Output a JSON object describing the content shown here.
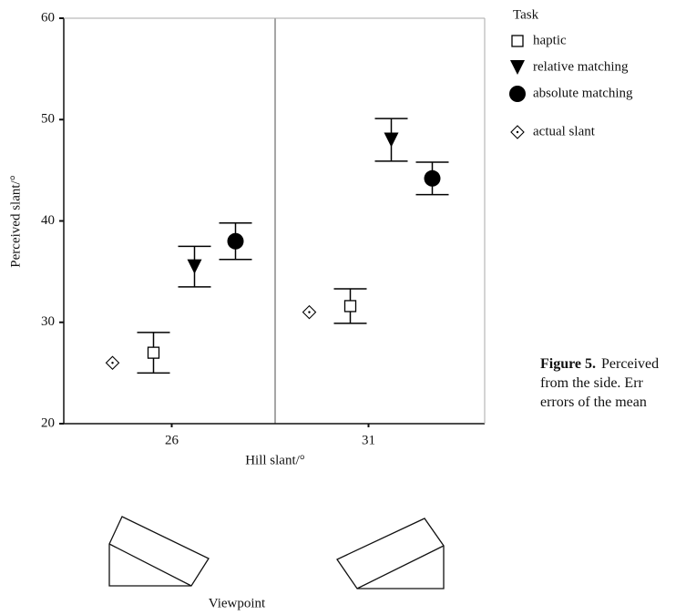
{
  "chart_data": {
    "type": "scatter",
    "x_label": "Hill slant/°",
    "y_label": "Perceived slant/°",
    "categories": [
      "26",
      "31"
    ],
    "ylim": [
      20,
      60
    ],
    "yticks": [
      20,
      30,
      40,
      50,
      60
    ],
    "legend_title": "Task",
    "series": [
      {
        "name": "haptic",
        "marker": "square",
        "color": "#000000",
        "values": [
          27,
          31.6
        ],
        "errors": [
          2,
          1.7
        ]
      },
      {
        "name": "relative matching",
        "marker": "triangle-down",
        "color": "#000000",
        "values": [
          35.5,
          48
        ],
        "errors": [
          2,
          2.1
        ]
      },
      {
        "name": "absolute matching",
        "marker": "circle",
        "color": "#000000",
        "values": [
          38,
          44.2
        ],
        "errors": [
          1.8,
          1.6
        ]
      },
      {
        "name": "actual slant",
        "marker": "diamond",
        "color": "#000000",
        "values": [
          26,
          31
        ]
      }
    ],
    "footer_label": "Viewpoint"
  },
  "caption": {
    "label": "Figure 5.",
    "lines": [
      "Perceived",
      "from the side. Err",
      "errors of the mean"
    ]
  }
}
